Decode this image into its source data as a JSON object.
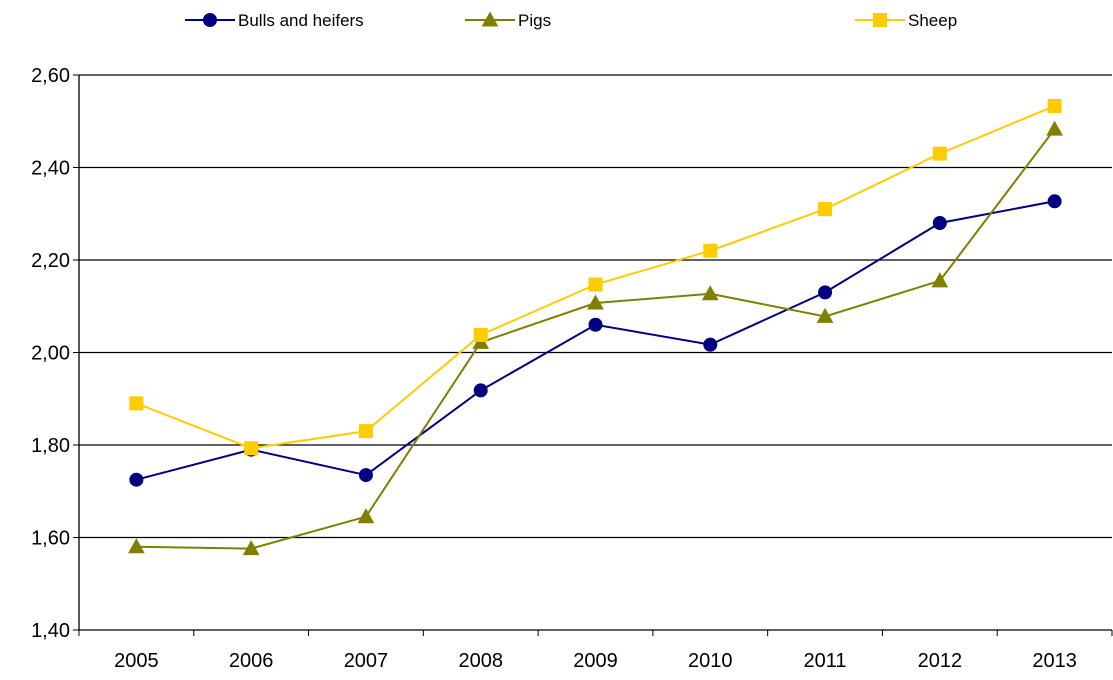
{
  "chart_data": {
    "type": "line",
    "title": "",
    "xlabel": "",
    "ylabel": "",
    "categories": [
      "2005",
      "2006",
      "2007",
      "2008",
      "2009",
      "2010",
      "2011",
      "2012",
      "2013"
    ],
    "ylim": [
      1.4,
      2.6
    ],
    "yticks": [
      "1,40",
      "1,60",
      "1,80",
      "2,00",
      "2,20",
      "2,40",
      "2,60"
    ],
    "grid": "horizontal",
    "legend": "top",
    "series": [
      {
        "name": "Bulls and heifers",
        "color": "#000080",
        "marker": "circle",
        "values": [
          1.725,
          1.79,
          1.735,
          1.918,
          2.06,
          2.017,
          2.13,
          2.28,
          2.327
        ]
      },
      {
        "name": "Pigs",
        "color": "#808000",
        "marker": "triangle",
        "values": [
          1.58,
          1.576,
          1.645,
          2.022,
          2.107,
          2.127,
          2.078,
          2.155,
          2.483
        ]
      },
      {
        "name": "Sheep",
        "color": "#FFCC00",
        "marker": "square",
        "values": [
          1.89,
          1.793,
          1.83,
          2.038,
          2.147,
          2.22,
          2.31,
          2.43,
          2.533
        ]
      }
    ]
  }
}
